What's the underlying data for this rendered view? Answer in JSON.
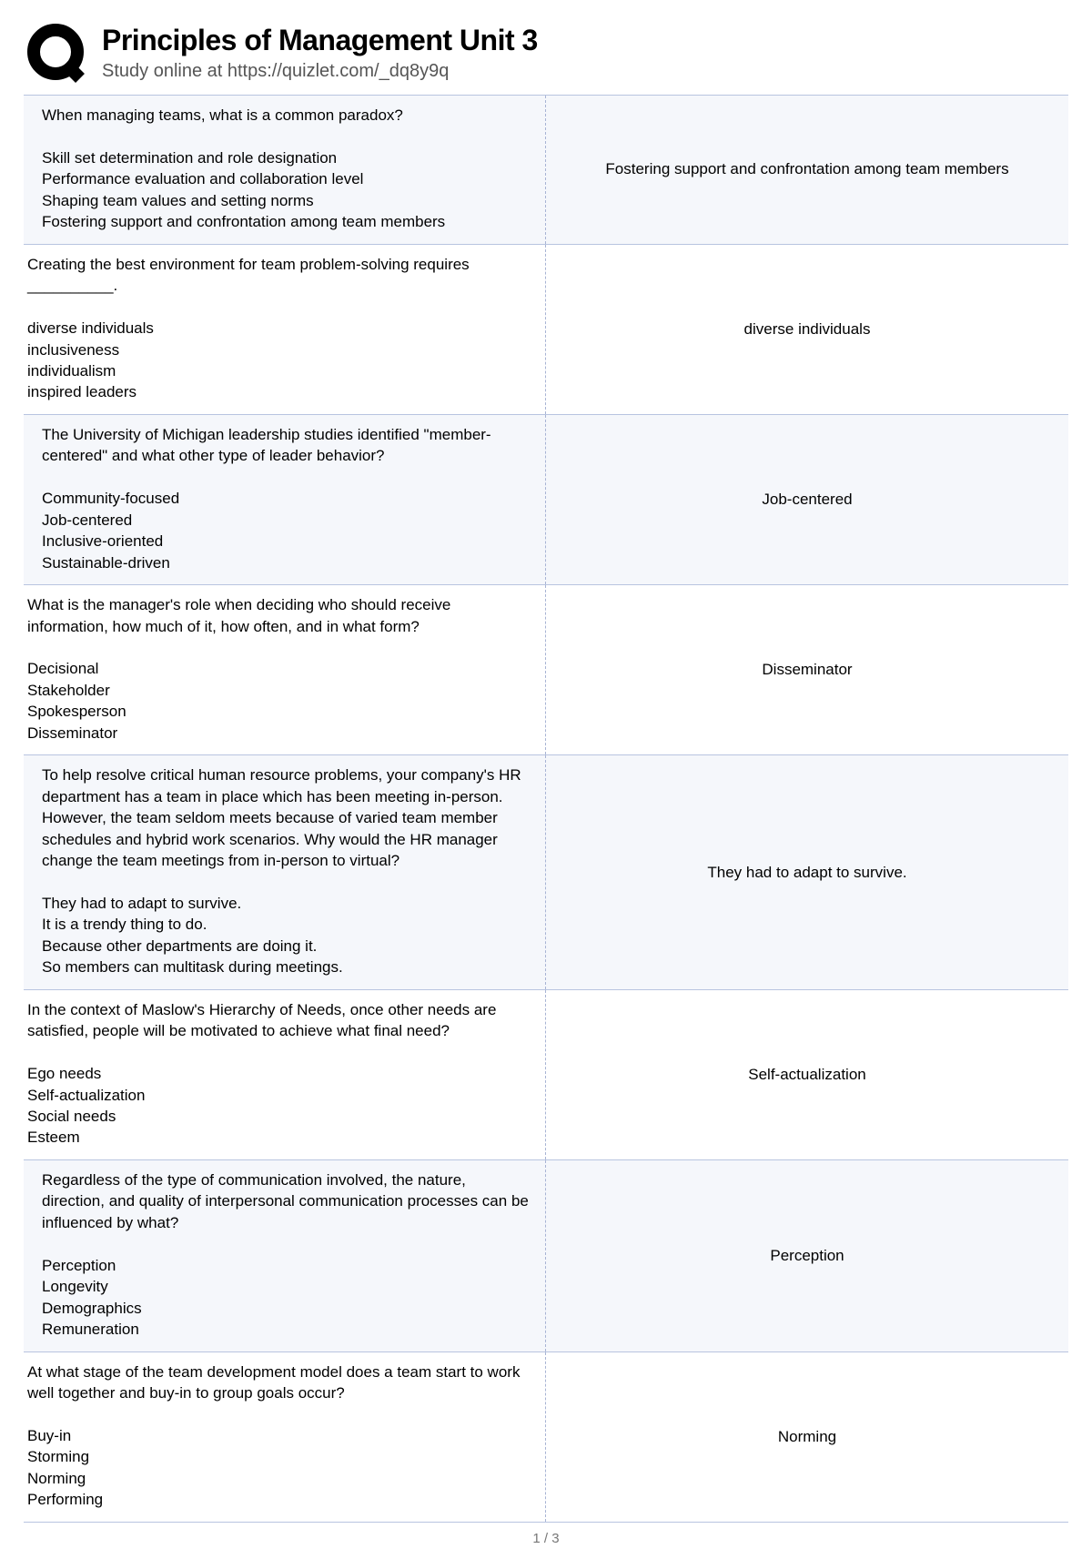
{
  "header": {
    "title": "Principles of Management Unit 3",
    "subtitle": "Study online at https://quizlet.com/_dq8y9q"
  },
  "logo": {
    "stroke_color": "#000000",
    "stroke_width": 14,
    "size": 70
  },
  "colors": {
    "row_border": "#b8c4e0",
    "alt_bg": "#f5f7fb",
    "divider": "#a8b4d4"
  },
  "rows": [
    {
      "question": "When managing teams, what is a common paradox?\n\nSkill set determination and role designation\nPerformance evaluation and collaboration level\nShaping team values and setting norms\nFostering support and confrontation among team members",
      "answer": "Fostering support and confrontation among team members"
    },
    {
      "question": "Creating the best environment for team problem-solving requires __________.\n\ndiverse individuals\ninclusiveness\nindividualism\ninspired leaders",
      "answer": "diverse individuals"
    },
    {
      "question": "The University of Michigan leadership studies identified \"member-centered\" and what other type of leader behavior?\n\nCommunity-focused\nJob-centered\nInclusive-oriented\nSustainable-driven",
      "answer": "Job-centered"
    },
    {
      "question": "What is the manager's role when deciding who should receive information, how much of it, how often, and in what form?\n\nDecisional\nStakeholder\nSpokesperson\nDisseminator",
      "answer": "Disseminator"
    },
    {
      "question": "To help resolve critical human resource problems, your company's HR department has a team in place which has been meeting in-person. However, the team seldom meets because of varied team member schedules and hybrid work scenarios. Why would the HR manager change the team meetings from in-person to virtual?\n\nThey had to adapt to survive.\nIt is a trendy thing to do.\nBecause other departments are doing it.\nSo members can multitask during meetings.",
      "answer": "They had to adapt to survive."
    },
    {
      "question": "In the context of Maslow's Hierarchy of Needs, once other needs are satisfied, people will be motivated to achieve what final need?\n\nEgo needs\nSelf-actualization\nSocial needs\nEsteem",
      "answer": "Self-actualization"
    },
    {
      "question": "Regardless of the type of communication involved, the nature, direction, and quality of interpersonal communication processes can be influenced by what?\n\nPerception\nLongevity\nDemographics\nRemuneration",
      "answer": "Perception"
    },
    {
      "question": "At what stage of the team development model does a team start to work well together and buy-in to group goals occur?\n\nBuy-in\nStorming\nNorming\nPerforming",
      "answer": "Norming"
    }
  ],
  "footer": {
    "page_indicator": "1 / 3"
  }
}
